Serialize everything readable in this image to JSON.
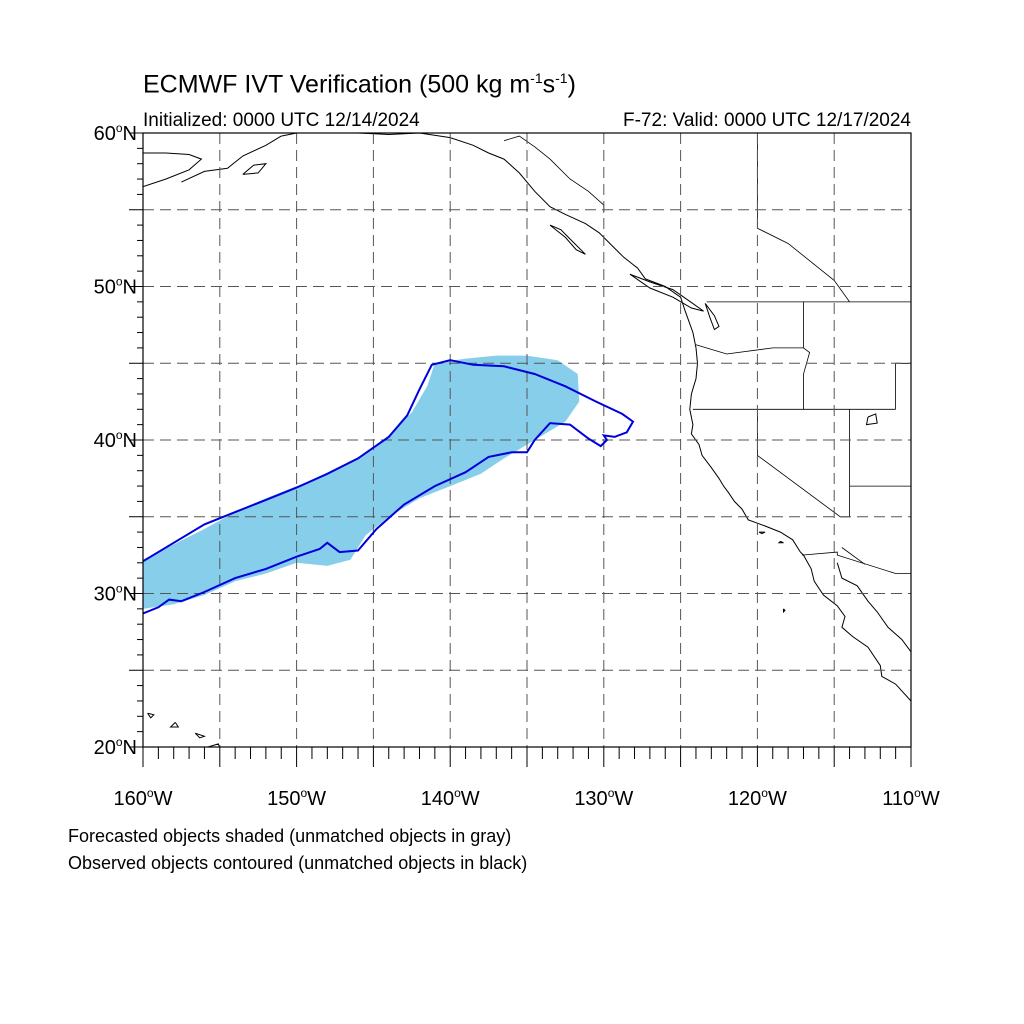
{
  "header": {
    "title_prefix": "ECMWF IVT Verification (500 kg m",
    "title_sup1": "-1",
    "title_mid": "s",
    "title_sup2": "-1",
    "title_suffix": ")",
    "initialized": "Initialized: 0000 UTC 12/14/2024",
    "valid": "F-72: Valid: 0000 UTC 12/17/2024"
  },
  "map": {
    "projection": "cylindrical equidistant",
    "lon_range": [
      -160,
      -110
    ],
    "lat_range": [
      20,
      60
    ],
    "grid": true,
    "lat_ticks": [
      {
        "value": 60,
        "num": "60",
        "hemi": "N"
      },
      {
        "value": 50,
        "num": "50",
        "hemi": "N"
      },
      {
        "value": 40,
        "num": "40",
        "hemi": "N"
      },
      {
        "value": 30,
        "num": "30",
        "hemi": "N"
      },
      {
        "value": 20,
        "num": "20",
        "hemi": "N"
      }
    ],
    "lon_ticks": [
      {
        "value": -160,
        "num": "160",
        "hemi": "W"
      },
      {
        "value": -150,
        "num": "150",
        "hemi": "W"
      },
      {
        "value": -140,
        "num": "140",
        "hemi": "W"
      },
      {
        "value": -130,
        "num": "130",
        "hemi": "W"
      },
      {
        "value": -120,
        "num": "120",
        "hemi": "W"
      },
      {
        "value": -110,
        "num": "110",
        "hemi": "W"
      }
    ],
    "colors": {
      "forecast_fill": "#87ceeb",
      "observed_contour": "#0000dd",
      "coast": "#000000",
      "grid": "#555555"
    },
    "forecast_object": [
      [
        -160,
        32.2
      ],
      [
        -158,
        33.2
      ],
      [
        -156,
        34.2
      ],
      [
        -154,
        35.3
      ],
      [
        -152,
        36.2
      ],
      [
        -150,
        37
      ],
      [
        -148,
        37.8
      ],
      [
        -146,
        38.8
      ],
      [
        -144,
        40.3
      ],
      [
        -142.5,
        41.8
      ],
      [
        -141.5,
        43.5
      ],
      [
        -141,
        45
      ],
      [
        -139,
        45.3
      ],
      [
        -137,
        45.5
      ],
      [
        -135,
        45.5
      ],
      [
        -133,
        45.2
      ],
      [
        -131.7,
        44.3
      ],
      [
        -131.6,
        42.5
      ],
      [
        -132.5,
        41.2
      ],
      [
        -134.5,
        40
      ],
      [
        -136.5,
        38.8
      ],
      [
        -138,
        37.8
      ],
      [
        -140,
        37
      ],
      [
        -142,
        36.2
      ],
      [
        -144,
        35
      ],
      [
        -145.5,
        33.8
      ],
      [
        -146.5,
        32.2
      ],
      [
        -148,
        31.8
      ],
      [
        -150,
        32
      ],
      [
        -152,
        31.3
      ],
      [
        -154,
        30.8
      ],
      [
        -156,
        29.9
      ],
      [
        -158,
        29.3
      ],
      [
        -160,
        29
      ]
    ],
    "observed_object": [
      [
        -160,
        32.1
      ],
      [
        -158,
        33.3
      ],
      [
        -156,
        34.5
      ],
      [
        -154,
        35.3
      ],
      [
        -152,
        36.1
      ],
      [
        -150,
        36.9
      ],
      [
        -148,
        37.8
      ],
      [
        -146,
        38.8
      ],
      [
        -144,
        40.2
      ],
      [
        -142.8,
        41.6
      ],
      [
        -142,
        43.3
      ],
      [
        -141.2,
        44.9
      ],
      [
        -140,
        45.2
      ],
      [
        -138.5,
        44.9
      ],
      [
        -136.5,
        44.8
      ],
      [
        -134.5,
        44.3
      ],
      [
        -132.5,
        43.5
      ],
      [
        -130.5,
        42.5
      ],
      [
        -128.8,
        41.7
      ],
      [
        -128.1,
        41.2
      ],
      [
        -128.5,
        40.5
      ],
      [
        -129.3,
        40.2
      ],
      [
        -130,
        40.3
      ],
      [
        -129.8,
        40
      ],
      [
        -130.2,
        39.6
      ],
      [
        -131,
        40.1
      ],
      [
        -132.2,
        41
      ],
      [
        -133.5,
        41.1
      ],
      [
        -134.5,
        40
      ],
      [
        -135,
        39.2
      ],
      [
        -136,
        39.2
      ],
      [
        -137.5,
        38.9
      ],
      [
        -139,
        37.9
      ],
      [
        -141,
        37
      ],
      [
        -143,
        35.8
      ],
      [
        -144.8,
        34.2
      ],
      [
        -146,
        32.8
      ],
      [
        -147.2,
        32.7
      ],
      [
        -148,
        33.3
      ],
      [
        -148.5,
        32.9
      ],
      [
        -150,
        32.4
      ],
      [
        -152,
        31.6
      ],
      [
        -154,
        31
      ],
      [
        -156,
        30.1
      ],
      [
        -157.5,
        29.5
      ],
      [
        -158.3,
        29.6
      ],
      [
        -159,
        29.1
      ],
      [
        -160,
        28.7
      ]
    ],
    "coastlines": [
      [
        [
          -160,
          56.5
        ],
        [
          -158.5,
          57
        ],
        [
          -157,
          57.6
        ],
        [
          -156.2,
          58.3
        ],
        [
          -157,
          58.6
        ],
        [
          -158.5,
          58.7
        ],
        [
          -160,
          58.7
        ]
      ],
      [
        [
          -157.5,
          56.8
        ],
        [
          -156,
          57.5
        ],
        [
          -154.5,
          57.7
        ],
        [
          -153.5,
          58.5
        ],
        [
          -152,
          59.2
        ],
        [
          -151,
          59.8
        ]
      ],
      [
        [
          -153.5,
          57.3
        ],
        [
          -152.8,
          57.9
        ],
        [
          -152,
          58
        ],
        [
          -152.5,
          57.4
        ],
        [
          -153.5,
          57.3
        ]
      ],
      [
        [
          -151,
          59.8
        ],
        [
          -150,
          60
        ],
        [
          -149,
          60
        ]
      ],
      [
        [
          -146,
          60
        ],
        [
          -144,
          59.9
        ],
        [
          -142,
          60
        ],
        [
          -140,
          59.7
        ],
        [
          -138.5,
          59.2
        ],
        [
          -137.5,
          58.7
        ],
        [
          -136.5,
          58.3
        ],
        [
          -135.5,
          57.4
        ],
        [
          -134.5,
          56.2
        ],
        [
          -133.5,
          55.2
        ],
        [
          -132.5,
          54.7
        ],
        [
          -131.2,
          54.1
        ],
        [
          -130.3,
          53.5
        ],
        [
          -129.5,
          52.7
        ],
        [
          -128.7,
          51.9
        ],
        [
          -127.8,
          51.2
        ],
        [
          -127.3,
          50.5
        ],
        [
          -126,
          50
        ],
        [
          -125,
          49.3
        ],
        [
          -124.7,
          48.4
        ],
        [
          -124.2,
          47
        ],
        [
          -124,
          46
        ],
        [
          -123.9,
          45
        ],
        [
          -124,
          44
        ],
        [
          -124.3,
          43
        ],
        [
          -124.4,
          42
        ],
        [
          -124.2,
          41
        ],
        [
          -124.3,
          40.4
        ],
        [
          -123.8,
          39.7
        ],
        [
          -123.6,
          39
        ],
        [
          -123,
          38.2
        ],
        [
          -122.5,
          37.5
        ],
        [
          -122.2,
          37
        ],
        [
          -121.9,
          36.6
        ],
        [
          -121.5,
          36
        ],
        [
          -121,
          35.5
        ],
        [
          -120.6,
          34.8
        ],
        [
          -119.5,
          34.4
        ],
        [
          -118.5,
          34
        ],
        [
          -117.7,
          33.5
        ],
        [
          -117.2,
          32.7
        ],
        [
          -117,
          32.5
        ],
        [
          -116.5,
          31.6
        ],
        [
          -116.3,
          30.8
        ],
        [
          -115.7,
          29.9
        ],
        [
          -114.8,
          29.2
        ],
        [
          -114.3,
          28.5
        ],
        [
          -114.5,
          27.8
        ],
        [
          -113.8,
          27.2
        ],
        [
          -112.8,
          26.5
        ],
        [
          -112,
          25.3
        ],
        [
          -111.9,
          24.6
        ],
        [
          -111,
          24.1
        ],
        [
          -110,
          23
        ]
      ],
      [
        [
          -133.5,
          54
        ],
        [
          -132.5,
          53.2
        ],
        [
          -131.8,
          52.4
        ],
        [
          -131.2,
          52.1
        ],
        [
          -132,
          52.9
        ],
        [
          -132.8,
          53.7
        ],
        [
          -133.5,
          54
        ]
      ],
      [
        [
          -128.3,
          50.8
        ],
        [
          -127,
          50.3
        ],
        [
          -125.5,
          49.8
        ],
        [
          -124.5,
          49.1
        ],
        [
          -123.5,
          48.4
        ],
        [
          -124.3,
          48.6
        ],
        [
          -125.5,
          49.3
        ],
        [
          -127,
          49.9
        ],
        [
          -128.3,
          50.8
        ]
      ],
      [
        [
          -123.4,
          48.9
        ],
        [
          -122.8,
          48.1
        ],
        [
          -122.5,
          47.4
        ],
        [
          -122.8,
          47.2
        ],
        [
          -123.1,
          48
        ],
        [
          -123.4,
          48.9
        ]
      ],
      [
        [
          -114.8,
          32
        ],
        [
          -114.5,
          31
        ],
        [
          -113.5,
          30.5
        ],
        [
          -112.8,
          29.5
        ],
        [
          -112.2,
          28.8
        ],
        [
          -111.5,
          27.8
        ],
        [
          -110.6,
          27
        ],
        [
          -110,
          26.2
        ]
      ],
      [
        [
          -156.1,
          19.9
        ],
        [
          -155.6,
          19.1
        ],
        [
          -154.8,
          19.5
        ],
        [
          -155.1,
          20.2
        ],
        [
          -156.1,
          19.9
        ]
      ],
      [
        [
          -156.6,
          20.9
        ],
        [
          -156,
          20.7
        ],
        [
          -156.3,
          20.6
        ],
        [
          -156.6,
          20.9
        ]
      ],
      [
        [
          -157.9,
          21.6
        ],
        [
          -157.7,
          21.3
        ],
        [
          -158.2,
          21.3
        ],
        [
          -157.9,
          21.6
        ]
      ],
      [
        [
          -159.7,
          22.2
        ],
        [
          -159.3,
          22.1
        ],
        [
          -159.5,
          21.9
        ],
        [
          -159.7,
          22.2
        ]
      ],
      [
        [
          -119.9,
          34
        ],
        [
          -119.5,
          34
        ],
        [
          -119.7,
          33.9
        ],
        [
          -119.9,
          34
        ]
      ],
      [
        [
          -118.5,
          33.4
        ],
        [
          -118.3,
          33.3
        ],
        [
          -118.6,
          33.3
        ],
        [
          -118.5,
          33.4
        ]
      ],
      [
        [
          -118.3,
          29
        ],
        [
          -118.2,
          28.9
        ],
        [
          -118.3,
          28.8
        ],
        [
          -118.3,
          29
        ]
      ],
      [
        [
          -112.8,
          41.5
        ],
        [
          -112.3,
          41.7
        ],
        [
          -112.2,
          41.1
        ],
        [
          -112.9,
          41
        ],
        [
          -112.8,
          41.5
        ]
      ]
    ],
    "borders": [
      [
        [
          -123.3,
          49
        ],
        [
          -110,
          49
        ]
      ],
      [
        [
          -124.2,
          42
        ],
        [
          -111,
          42
        ]
      ],
      [
        [
          -120,
          42
        ],
        [
          -120,
          39
        ],
        [
          -114.6,
          35
        ]
      ],
      [
        [
          -117,
          49
        ],
        [
          -117,
          46
        ],
        [
          -116.6,
          45.7
        ],
        [
          -117,
          44.3
        ],
        [
          -117,
          42
        ]
      ],
      [
        [
          -114,
          42
        ],
        [
          -114,
          35
        ],
        [
          -114.6,
          35
        ]
      ],
      [
        [
          -111,
          42
        ],
        [
          -111,
          45
        ],
        [
          -110,
          45
        ]
      ],
      [
        [
          -114,
          37
        ],
        [
          -110,
          37
        ]
      ],
      [
        [
          -117.1,
          32.5
        ],
        [
          -114.8,
          32.7
        ],
        [
          -114.8,
          32.5
        ],
        [
          -111,
          31.3
        ],
        [
          -110,
          31.3
        ]
      ],
      [
        [
          -120,
          60
        ],
        [
          -120,
          53.8
        ],
        [
          -118,
          52.8
        ],
        [
          -116,
          51.2
        ],
        [
          -115,
          50.4
        ],
        [
          -114,
          49
        ]
      ],
      [
        [
          -141,
          60
        ],
        [
          -141,
          60
        ]
      ],
      [
        [
          -136.5,
          59.5
        ],
        [
          -135.5,
          59.8
        ],
        [
          -134.5,
          59.1
        ],
        [
          -133.5,
          58.3
        ],
        [
          -132.2,
          57
        ],
        [
          -131,
          56.2
        ],
        [
          -130,
          55.3
        ],
        [
          -130,
          54.8
        ]
      ],
      [
        [
          -124,
          46.2
        ],
        [
          -122,
          45.6
        ],
        [
          -119,
          46
        ],
        [
          -117,
          46
        ]
      ],
      [
        [
          -114.5,
          33
        ],
        [
          -113,
          31.9
        ]
      ]
    ]
  },
  "notes": {
    "line1": "Forecasted objects shaded (unmatched objects in gray)",
    "line2": "Observed objects contoured (unmatched objects in black)"
  }
}
